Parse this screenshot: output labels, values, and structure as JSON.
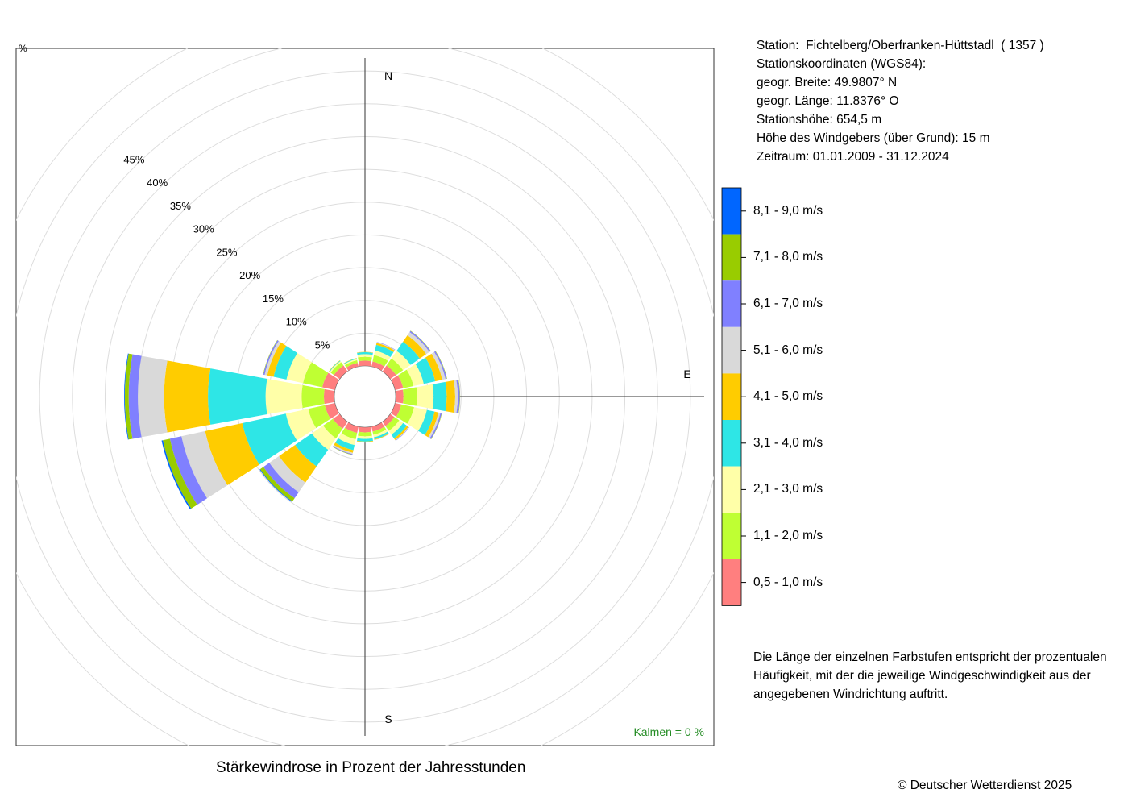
{
  "station": {
    "name_line": "Station:  Fichtelberg/Oberfranken-Hüttstadl  ( 1357 )",
    "coords_header": "Stationskoordinaten (WGS84):",
    "lat": "geogr. Breite: 49.9807° N",
    "lon": "geogr. Länge: 11.8376° O",
    "height": "Stationshöhe: 654,5 m",
    "sensor_height": "Höhe des Windgebers (über Grund): 15 m",
    "period": "Zeitraum: 01.01.2009 - 31.12.2024"
  },
  "note": {
    "line1": "Die Länge der einzelnen Farbstufen entspricht der prozentualen",
    "line2": "Häufigkeit, mit der die jeweilige Windgeschwindigkeit aus der",
    "line3": "angegebenen Windrichtung auftritt."
  },
  "title": "Stärkewindrose in Prozent der Jahresstunden",
  "copyright": "© Deutscher Wetterdienst  2025",
  "calm_label": "Kalmen  =  0 %",
  "colors": {
    "calm_text": "#228B22",
    "grid": "#dddddd"
  },
  "chart_data": {
    "type": "windrose",
    "unit": "%",
    "directions": [
      "N",
      "NNE",
      "NE",
      "ENE",
      "E",
      "ESE",
      "SE",
      "SSE",
      "S",
      "SSW",
      "SW",
      "WSW",
      "W",
      "WNW",
      "NW",
      "NNW"
    ],
    "compass_labels": [
      "N",
      "E",
      "S"
    ],
    "direction_angles_deg": [
      0,
      22.5,
      45,
      67.5,
      90,
      112.5,
      135,
      157.5,
      180,
      202.5,
      225,
      247.5,
      270,
      292.5,
      315,
      337.5
    ],
    "radial_ticks": [
      5,
      10,
      15,
      20,
      25,
      30,
      35,
      40,
      45
    ],
    "radial_tick_labels": [
      "5%",
      "10%",
      "15%",
      "20%",
      "25%",
      "30%",
      "35%",
      "40%",
      "45%"
    ],
    "rmax": 50,
    "bins": [
      {
        "label": "0,5 - 1,0 m/s",
        "color": "#ff7f7f"
      },
      {
        "label": "1,1 - 2,0 m/s",
        "color": "#bfff33"
      },
      {
        "label": "2,1 - 3,0 m/s",
        "color": "#ffffa8"
      },
      {
        "label": "3,1 - 4,0 m/s",
        "color": "#2ee6e6"
      },
      {
        "label": "4,1 - 5,0 m/s",
        "color": "#ffcc00"
      },
      {
        "label": "5,1 - 6,0 m/s",
        "color": "#d9d9d9"
      },
      {
        "label": "6,1 - 7,0 m/s",
        "color": "#8080ff"
      },
      {
        "label": "7,1 - 8,0 m/s",
        "color": "#99cc00"
      },
      {
        "label": "8,1 - 9,0 m/s",
        "color": "#0066ff"
      }
    ],
    "values": {
      "N": [
        0.8,
        0.6,
        0.4,
        0.3,
        0.05,
        0.02,
        0,
        0,
        0
      ],
      "NNE": [
        0.8,
        1.0,
        0.7,
        0.9,
        0.3,
        0.1,
        0.05,
        0,
        0
      ],
      "NE": [
        1.1,
        1.3,
        1.4,
        1.7,
        1.2,
        0.6,
        0.2,
        0.05,
        0
      ],
      "ENE": [
        1.3,
        1.6,
        1.6,
        1.8,
        1.1,
        0.5,
        0.2,
        0.05,
        0
      ],
      "E": [
        1.2,
        2.1,
        2.5,
        2.0,
        1.3,
        0.4,
        0.3,
        0.05,
        0
      ],
      "ESE": [
        1.0,
        2.0,
        2.0,
        1.2,
        0.6,
        0.3,
        0.2,
        0.05,
        0
      ],
      "SE": [
        0.8,
        0.9,
        0.7,
        0.7,
        0.3,
        0.1,
        0.05,
        0,
        0
      ],
      "SSE": [
        0.8,
        0.5,
        0.4,
        0.3,
        0.1,
        0.05,
        0,
        0,
        0
      ],
      "S": [
        0.8,
        0.6,
        0.4,
        0.4,
        0.1,
        0.05,
        0,
        0,
        0
      ],
      "SSW": [
        1.0,
        1.0,
        0.9,
        0.8,
        0.4,
        0.2,
        0.1,
        0.05,
        0
      ],
      "SW": [
        1.3,
        1.8,
        2.1,
        3.1,
        3.0,
        1.8,
        1.1,
        0.6,
        0.1
      ],
      "WSW": [
        1.6,
        2.6,
        3.5,
        6.8,
        5.8,
        3.7,
        1.8,
        1.1,
        0.2
      ],
      "W": [
        1.6,
        3.4,
        5.5,
        8.8,
        6.7,
        4.0,
        1.4,
        0.6,
        0.1
      ],
      "WNW": [
        2.0,
        3.0,
        2.6,
        2.0,
        1.0,
        0.4,
        0.2,
        0.05,
        0
      ],
      "NW": [
        1.1,
        0.6,
        0.2,
        0.1,
        0.05,
        0,
        0,
        0,
        0
      ],
      "NNW": [
        0.6,
        0.4,
        0.2,
        0.1,
        0.05,
        0,
        0,
        0,
        0
      ]
    },
    "calm_percent": 0
  }
}
